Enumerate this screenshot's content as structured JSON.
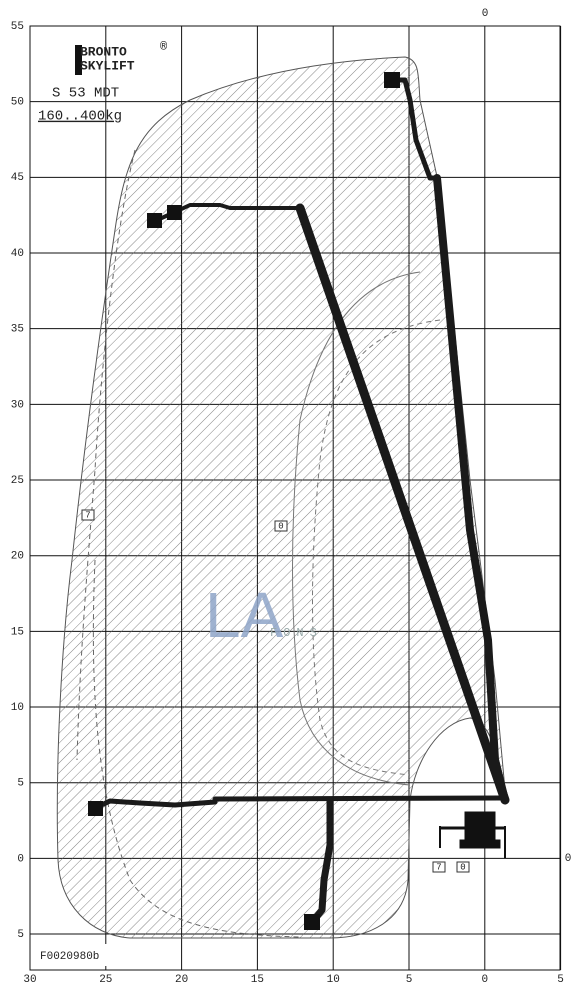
{
  "logo": {
    "line1": "BRONTO",
    "line2": "SKYLIFT",
    "mark": "®"
  },
  "model": "S 53 MDT",
  "load": "160..400kg",
  "drawing_code": "F0020980b",
  "x_axis_labels": [
    "30",
    "25",
    "20",
    "15",
    "10",
    "5",
    "0",
    "5"
  ],
  "y_axis_labels": [
    "55",
    "50",
    "45",
    "40",
    "35",
    "30",
    "25",
    "20",
    "15",
    "10",
    "5",
    "0",
    "5"
  ],
  "axis_zero_top": "0",
  "axis_zero_right": "0",
  "zone_tags": [
    "7",
    "0",
    "7",
    "0"
  ],
  "watermark": {
    "letters": "LA",
    "word": "FONS"
  }
}
